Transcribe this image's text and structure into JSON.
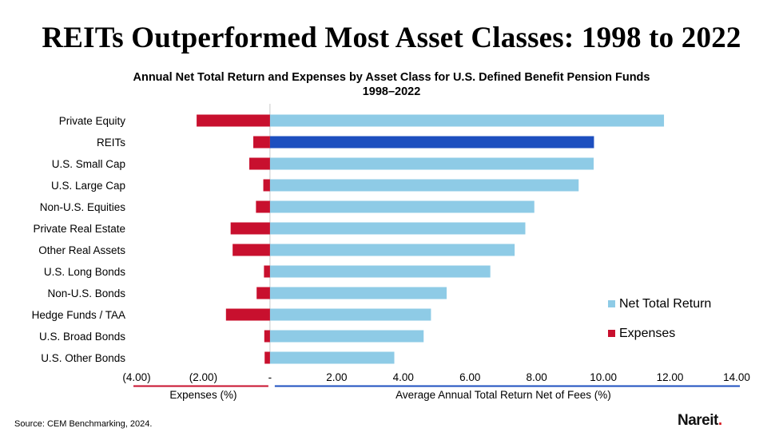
{
  "headline": "REITs Outperformed Most Asset Classes: 1998 to 2022",
  "chart_data": {
    "type": "bar",
    "orientation": "horizontal",
    "title": "Annual Net Total Return and Expenses by Asset Class for U.S. Defined Benefit Pension Funds",
    "subtitle": "1998–2022",
    "categories": [
      "Private Equity",
      "REITs",
      "U.S. Small Cap",
      "U.S. Large Cap",
      "Non-U.S. Equities",
      "Private Real Estate",
      "Other Real Assets",
      "U.S. Long Bonds",
      "Non-U.S. Bonds",
      "Hedge Funds / TAA",
      "U.S. Broad Bonds",
      "U.S. Other Bonds"
    ],
    "series": [
      {
        "name": "Net Total Return",
        "color": "#8ecbe6",
        "highlight": {
          "category": "REITs",
          "color": "#1d4fbf"
        },
        "values": [
          11.82,
          9.72,
          9.71,
          9.26,
          7.93,
          7.66,
          7.34,
          6.61,
          5.3,
          4.83,
          4.61,
          3.73
        ]
      },
      {
        "name": "Expenses",
        "color": "#c8102e",
        "values": [
          -2.2,
          -0.5,
          -0.62,
          -0.2,
          -0.42,
          -1.18,
          -1.12,
          -0.18,
          -0.4,
          -1.32,
          -0.17,
          -0.16
        ]
      }
    ],
    "xlim": [
      -4,
      14
    ],
    "x_ticks": [
      {
        "value": -4,
        "label": "(4.00)"
      },
      {
        "value": -2,
        "label": "(2.00)"
      },
      {
        "value": 0,
        "label": "-"
      },
      {
        "value": 2,
        "label": "2.00"
      },
      {
        "value": 4,
        "label": "4.00"
      },
      {
        "value": 6,
        "label": "6.00"
      },
      {
        "value": 8,
        "label": "8.00"
      },
      {
        "value": 10,
        "label": "10.00"
      },
      {
        "value": 12,
        "label": "12.00"
      },
      {
        "value": 14,
        "label": "14.00"
      }
    ],
    "xlabel_left": "Expenses (%)",
    "xlabel_right": "Average Annual Total Return Net of Fees (%)",
    "left_axis_color": "#c8102e",
    "right_axis_color": "#1d4fbf",
    "grid": false,
    "legend_position": "right"
  },
  "footer": {
    "source": "Source: CEM Benchmarking, 2024.",
    "logo_text": "Nareit",
    "logo_dot": "."
  }
}
